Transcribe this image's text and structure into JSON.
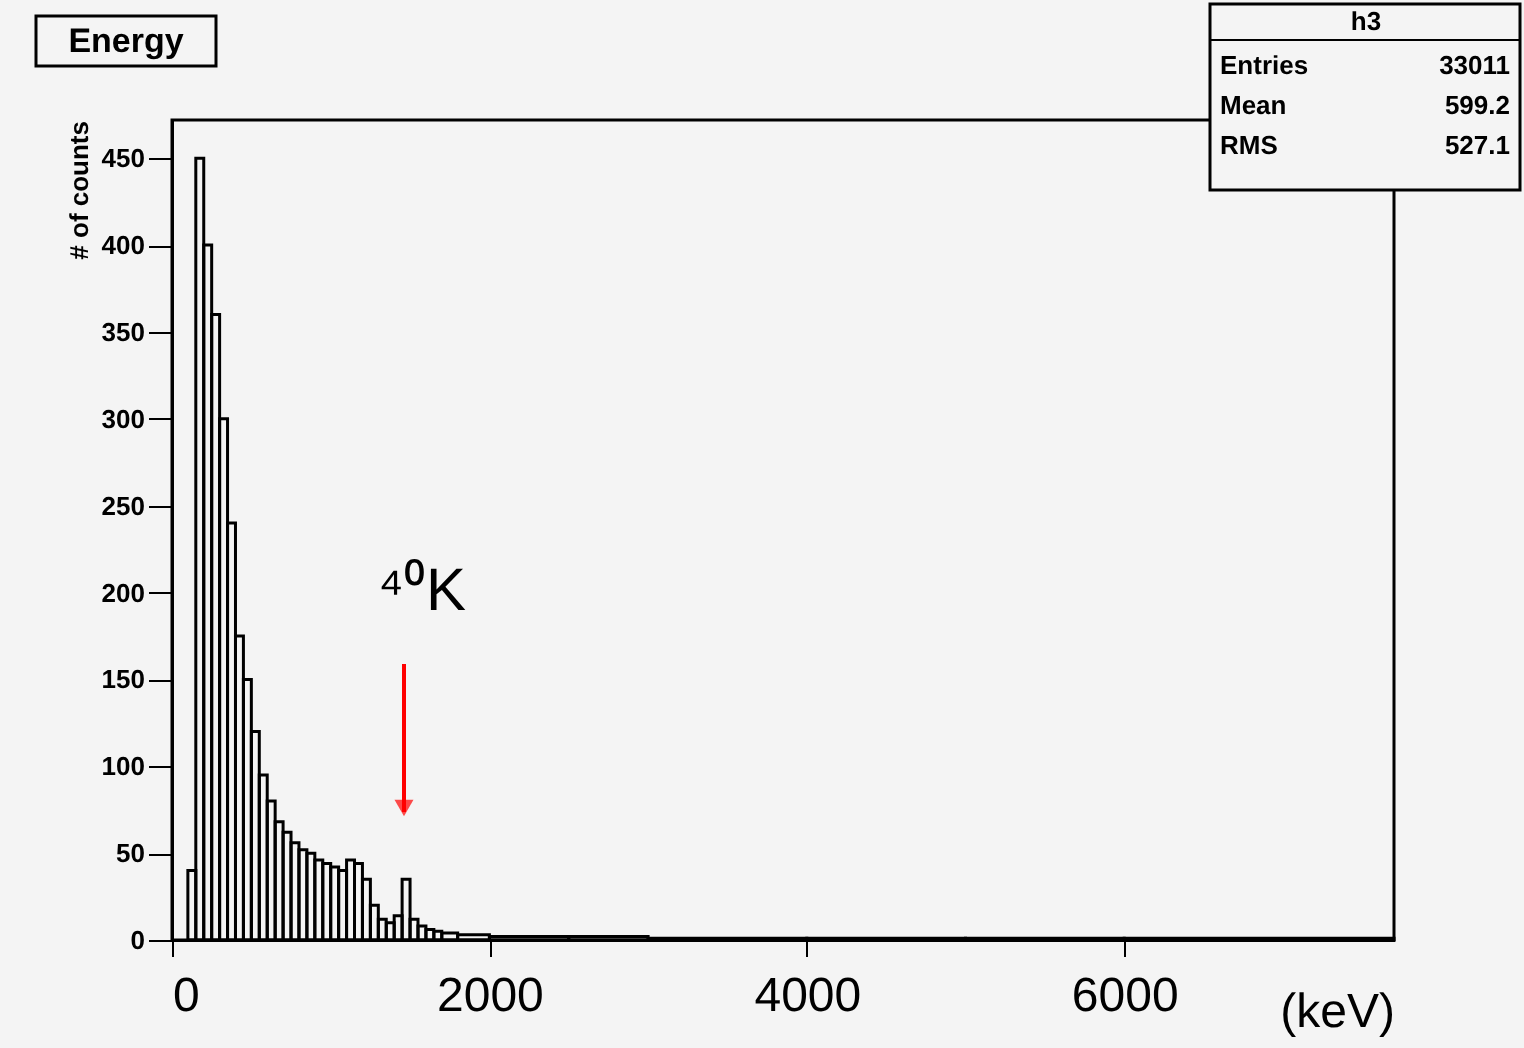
{
  "chart_data": {
    "type": "histogram",
    "title": "Energy",
    "ylabel": "# of counts",
    "xlabel": "(keV)",
    "bins": [
      100,
      150,
      200,
      250,
      300,
      350,
      400,
      450,
      500,
      550,
      600,
      650,
      700,
      750,
      800,
      850,
      900,
      950,
      1000,
      1050,
      1100,
      1150,
      1200,
      1250,
      1300,
      1350,
      1400,
      1450,
      1500,
      1550,
      1600,
      1650,
      1700,
      1800,
      2000,
      2500,
      3000,
      4000,
      5000,
      6000,
      7700
    ],
    "values": [
      40,
      450,
      400,
      360,
      300,
      240,
      175,
      150,
      120,
      95,
      80,
      68,
      62,
      56,
      52,
      50,
      46,
      44,
      42,
      40,
      46,
      44,
      35,
      20,
      12,
      10,
      14,
      35,
      12,
      8,
      6,
      5,
      4,
      3,
      2,
      2,
      1,
      1,
      1,
      1
    ],
    "color": "#000000",
    "xlim": [
      0,
      7700
    ],
    "xticks": [
      0,
      2000,
      4000,
      6000
    ],
    "ylim": [
      0,
      472
    ],
    "yticks": [
      0,
      50,
      100,
      150,
      200,
      250,
      300,
      350,
      400,
      450
    ],
    "grid": false,
    "annotations": [
      "⁴⁰K",
      "h3",
      "Entries",
      "33011",
      "Mean",
      "599.2",
      "RMS",
      "527.1"
    ]
  }
}
